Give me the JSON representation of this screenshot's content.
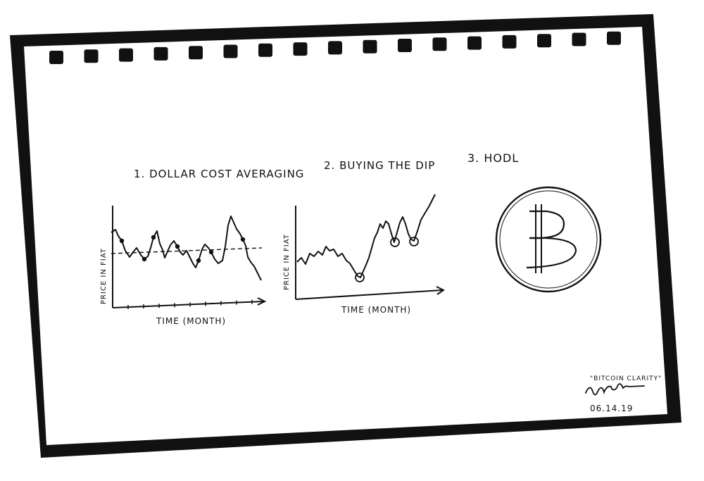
{
  "colors": {
    "background": "#ffffff",
    "paper": "#ffffff",
    "paper_border": "#111111",
    "ink": "#111111"
  },
  "sketch": {
    "panel1": {
      "title": "1. DOLLAR COST AVERAGING",
      "xlabel": "TIME (MONTH)",
      "ylabel": "PRICE IN FIAT"
    },
    "panel2": {
      "title": "2. BUYING THE DIP",
      "xlabel": "TIME (MONTH)",
      "ylabel": "PRICE IN FIAT"
    },
    "panel3": {
      "title": "3. HODL",
      "icon": "bitcoin-icon"
    },
    "caption": {
      "quote": "\"BITCOIN CLARITY\"",
      "date": "06.14.19",
      "signature": "handwritten-signature"
    }
  }
}
